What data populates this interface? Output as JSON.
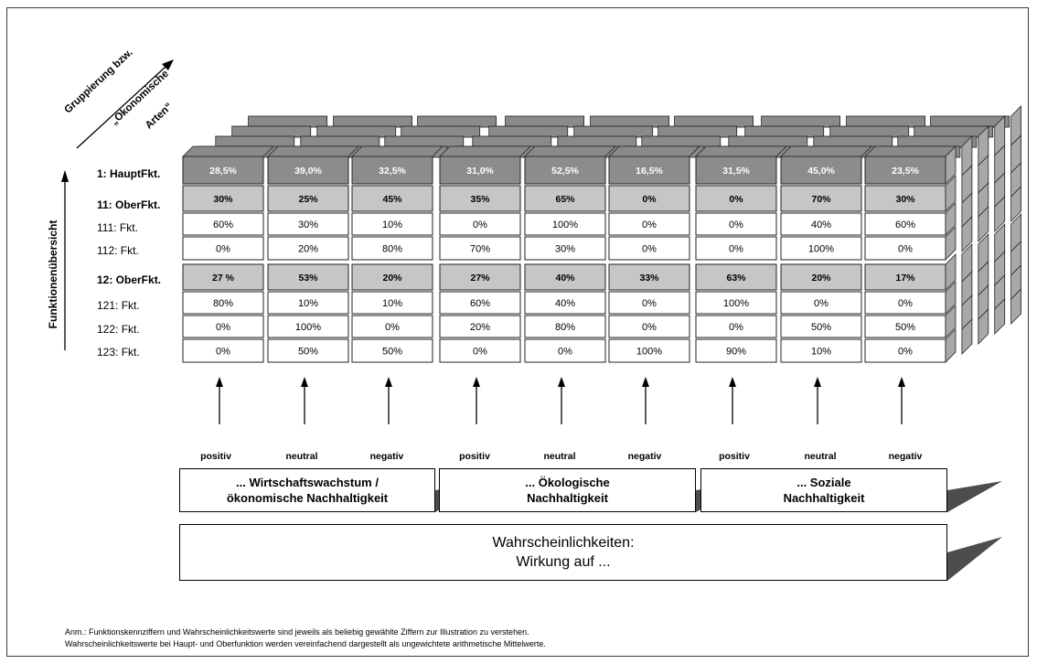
{
  "axis": {
    "vertical_title": "Funktionenübersicht",
    "diagonal_line1": "Gruppierung bzw.",
    "diagonal_line2": "„Ökonomische",
    "diagonal_line3": "Arten“"
  },
  "rows": [
    {
      "label": "1: HauptFkt.",
      "level": "haupt",
      "values": [
        "28,5%",
        "39,0%",
        "32,5%",
        "31,0%",
        "52,5%",
        "16,5%",
        "31,5%",
        "45,0%",
        "23,5%"
      ]
    },
    {
      "label": "11: OberFkt.",
      "level": "ober",
      "values": [
        "30%",
        "25%",
        "45%",
        "35%",
        "65%",
        "0%",
        "0%",
        "70%",
        "30%"
      ]
    },
    {
      "label": "111: Fkt.",
      "level": "fkt",
      "values": [
        "60%",
        "30%",
        "10%",
        "0%",
        "100%",
        "0%",
        "0%",
        "40%",
        "60%"
      ]
    },
    {
      "label": "112: Fkt.",
      "level": "fkt",
      "values": [
        "0%",
        "20%",
        "80%",
        "70%",
        "30%",
        "0%",
        "0%",
        "100%",
        "0%"
      ]
    },
    {
      "label": "12: OberFkt.",
      "level": "ober",
      "values": [
        "27 %",
        "53%",
        "20%",
        "27%",
        "40%",
        "33%",
        "63%",
        "20%",
        "17%"
      ]
    },
    {
      "label": "121: Fkt.",
      "level": "fkt",
      "values": [
        "80%",
        "10%",
        "10%",
        "60%",
        "40%",
        "0%",
        "100%",
        "0%",
        "0%"
      ]
    },
    {
      "label": "122: Fkt.",
      "level": "fkt",
      "values": [
        "0%",
        "100%",
        "0%",
        "20%",
        "80%",
        "0%",
        "0%",
        "50%",
        "50%"
      ]
    },
    {
      "label": "123: Fkt.",
      "level": "fkt",
      "values": [
        "0%",
        "50%",
        "50%",
        "0%",
        "0%",
        "100%",
        "90%",
        "10%",
        "0%"
      ]
    }
  ],
  "sentiments": [
    "positiv",
    "neutral",
    "negativ",
    "positiv",
    "neutral",
    "negativ",
    "positiv",
    "neutral",
    "negativ"
  ],
  "groups": [
    {
      "text": "... Wirtschaftswachstum /\nökonomische Nachhaltigkeit"
    },
    {
      "text": "... Ökologische\nNachhaltigkeit"
    },
    {
      "text": "... Soziale\nNachhaltigkeit"
    }
  ],
  "probability_box": "Wahrscheinlichkeiten:\nWirkung auf ...",
  "notes": {
    "line1": "Anm.: Funktionskennziffern und Wahrscheinlichkeitswerte sind jeweils als beliebig gewählte Ziffern zur Illustration zu verstehen.",
    "line2": "Wahrscheinlichkeitswerte bei Haupt- und Oberfunktion werden vereinfachend dargestellt als ungewichtete arithmetische Mittelwerte."
  },
  "colors": {
    "haupt": "#8c8c8c",
    "ober": "#c6c6c6",
    "fkt": "#ffffff",
    "back_top": "#8a8a8a",
    "right_face": "#a8a8a8",
    "shadow": "#4d4d4d"
  }
}
